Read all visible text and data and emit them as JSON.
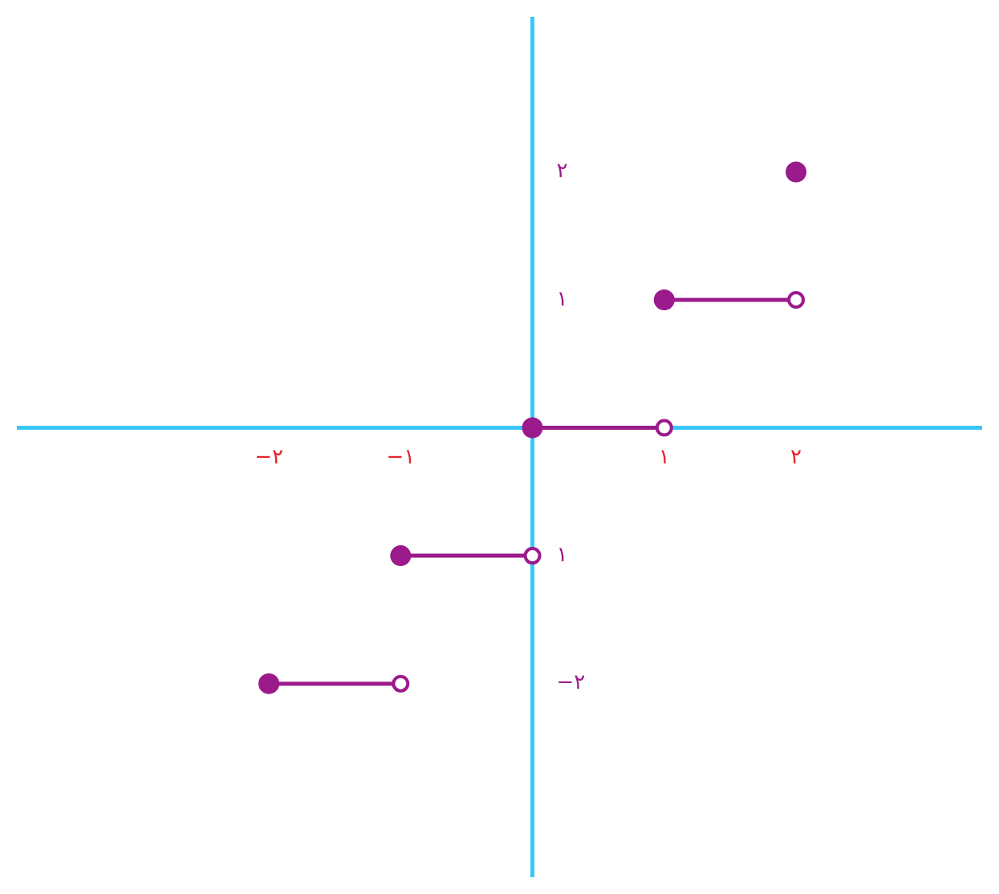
{
  "chart_data": {
    "type": "line",
    "xlim": [
      -3.9,
      3.4
    ],
    "ylim": [
      -3.5,
      3.2
    ],
    "xticks": [
      {
        "value": -2,
        "label": "−۲"
      },
      {
        "value": -1,
        "label": "−۱"
      },
      {
        "value": 1,
        "label": "۱"
      },
      {
        "value": 2,
        "label": "۲"
      }
    ],
    "yticks": [
      {
        "value": -2,
        "label": "−۲"
      },
      {
        "value": -1,
        "label": "۱"
      },
      {
        "value": 1,
        "label": "۱"
      },
      {
        "value": 2,
        "label": "۲"
      }
    ],
    "grid": false,
    "legend": false,
    "marker": "circle",
    "line_style": "solid",
    "series": [
      {
        "color": "#9b1a8c",
        "x": [
          -2,
          -1
        ],
        "values": [
          -2,
          -2
        ]
      },
      {
        "color": "#9b1a8c",
        "x": [
          -1,
          0
        ],
        "values": [
          -1,
          -1
        ]
      },
      {
        "color": "#9b1a8c",
        "x": [
          0,
          1
        ],
        "values": [
          0,
          0
        ]
      },
      {
        "color": "#9b1a8c",
        "x": [
          1,
          2
        ],
        "values": [
          1,
          1
        ]
      },
      {
        "color": "#9b1a8c",
        "x": [
          2
        ],
        "values": [
          2
        ]
      }
    ]
  }
}
